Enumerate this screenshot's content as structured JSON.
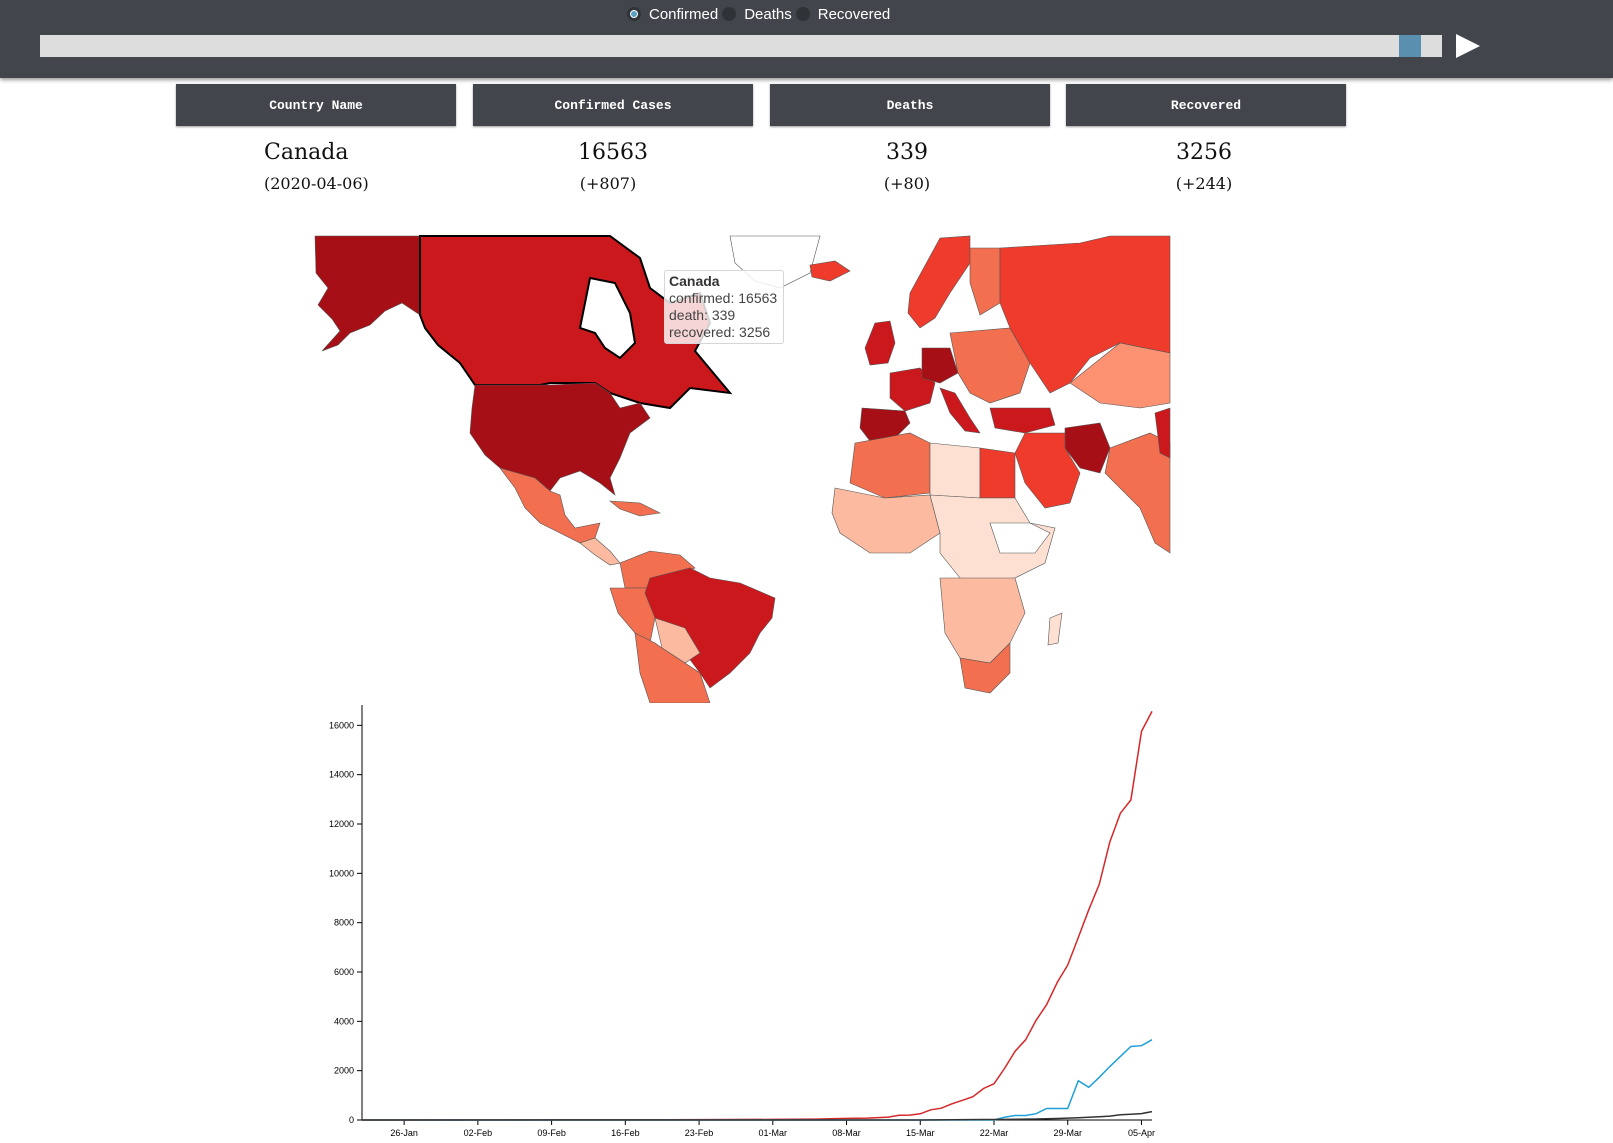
{
  "controls": {
    "radios": [
      {
        "label": "Confirmed",
        "selected": true
      },
      {
        "label": "Deaths",
        "selected": false
      },
      {
        "label": "Recovered",
        "selected": false
      }
    ],
    "slider_progress": 0.985
  },
  "table": {
    "headers": [
      "Country Name",
      "Confirmed Cases",
      "Deaths",
      "Recovered"
    ],
    "country": "Canada",
    "date": "(2020-04-06)",
    "confirmed": "16563",
    "confirmed_delta": "(+807)",
    "deaths": "339",
    "deaths_delta": "(+80)",
    "recovered": "3256",
    "recovered_delta": "(+244)"
  },
  "tooltip": {
    "name": "Canada",
    "confirmed": "confirmed: 16563",
    "death": "death: 339",
    "recovered": "recovered: 3256"
  },
  "colors": {
    "confirmed": "#d62728",
    "deaths": "#333333",
    "recovered": "#1f9fd8",
    "bar": "#42464c",
    "map_dark": "#a50f15",
    "map_mid": "#ef3b2c",
    "map_light": "#fcbba1",
    "map_pale": "#fee0d2"
  },
  "chart_data": {
    "type": "line",
    "title": "",
    "xlabel": "",
    "ylabel": "",
    "ylim": [
      0,
      16500
    ],
    "yticks": [
      0,
      2000,
      4000,
      6000,
      8000,
      10000,
      12000,
      14000,
      16000
    ],
    "xticks": [
      "26-Jan",
      "02-Feb",
      "09-Feb",
      "16-Feb",
      "23-Feb",
      "01-Mar",
      "08-Mar",
      "15-Mar",
      "22-Mar",
      "29-Mar",
      "05-Apr"
    ],
    "x_start": "22-Jan",
    "x_end": "06-Apr",
    "series": [
      {
        "color_key": "confirmed",
        "points": [
          [
            "22-Jan",
            0
          ],
          [
            "25-Jan",
            1
          ],
          [
            "26-Jan",
            1
          ],
          [
            "01-Feb",
            4
          ],
          [
            "10-Feb",
            7
          ],
          [
            "20-Feb",
            8
          ],
          [
            "01-Mar",
            24
          ],
          [
            "05-Mar",
            37
          ],
          [
            "08-Mar",
            64
          ],
          [
            "10-Mar",
            79
          ],
          [
            "12-Mar",
            117
          ],
          [
            "13-Mar",
            193
          ],
          [
            "14-Mar",
            198
          ],
          [
            "15-Mar",
            252
          ],
          [
            "16-Mar",
            415
          ],
          [
            "17-Mar",
            478
          ],
          [
            "18-Mar",
            657
          ],
          [
            "19-Mar",
            800
          ],
          [
            "20-Mar",
            943
          ],
          [
            "21-Mar",
            1277
          ],
          [
            "22-Mar",
            1469
          ],
          [
            "23-Mar",
            2088
          ],
          [
            "24-Mar",
            2790
          ],
          [
            "25-Mar",
            3251
          ],
          [
            "26-Mar",
            4042
          ],
          [
            "27-Mar",
            4682
          ],
          [
            "28-Mar",
            5576
          ],
          [
            "29-Mar",
            6280
          ],
          [
            "30-Mar",
            7398
          ],
          [
            "31-Mar",
            8527
          ],
          [
            "01-Apr",
            9560
          ],
          [
            "02-Apr",
            11284
          ],
          [
            "03-Apr",
            12437
          ],
          [
            "04-Apr",
            12978
          ],
          [
            "05-Apr",
            15756
          ],
          [
            "06-Apr",
            16563
          ]
        ]
      },
      {
        "color_key": "recovered",
        "points": [
          [
            "22-Jan",
            0
          ],
          [
            "22-Mar",
            0
          ],
          [
            "23-Mar",
            112
          ],
          [
            "24-Mar",
            184
          ],
          [
            "25-Mar",
            184
          ],
          [
            "26-Mar",
            256
          ],
          [
            "27-Mar",
            466
          ],
          [
            "28-Mar",
            466
          ],
          [
            "29-Mar",
            466
          ],
          [
            "30-Mar",
            1592
          ],
          [
            "31-Mar",
            1324
          ],
          [
            "01-Apr",
            1733
          ],
          [
            "02-Apr",
            2175
          ],
          [
            "03-Apr",
            2577
          ],
          [
            "04-Apr",
            2981
          ],
          [
            "05-Apr",
            3012
          ],
          [
            "06-Apr",
            3256
          ]
        ]
      },
      {
        "color_key": "deaths",
        "points": [
          [
            "22-Jan",
            0
          ],
          [
            "08-Mar",
            0
          ],
          [
            "09-Mar",
            1
          ],
          [
            "15-Mar",
            1
          ],
          [
            "18-Mar",
            8
          ],
          [
            "21-Mar",
            19
          ],
          [
            "22-Mar",
            21
          ],
          [
            "24-Mar",
            27
          ],
          [
            "26-Mar",
            39
          ],
          [
            "28-Mar",
            62
          ],
          [
            "30-Mar",
            89
          ],
          [
            "01-Apr",
            131
          ],
          [
            "02-Apr",
            158
          ],
          [
            "03-Apr",
            209
          ],
          [
            "04-Apr",
            232
          ],
          [
            "05-Apr",
            259
          ],
          [
            "06-Apr",
            339
          ]
        ]
      }
    ]
  }
}
